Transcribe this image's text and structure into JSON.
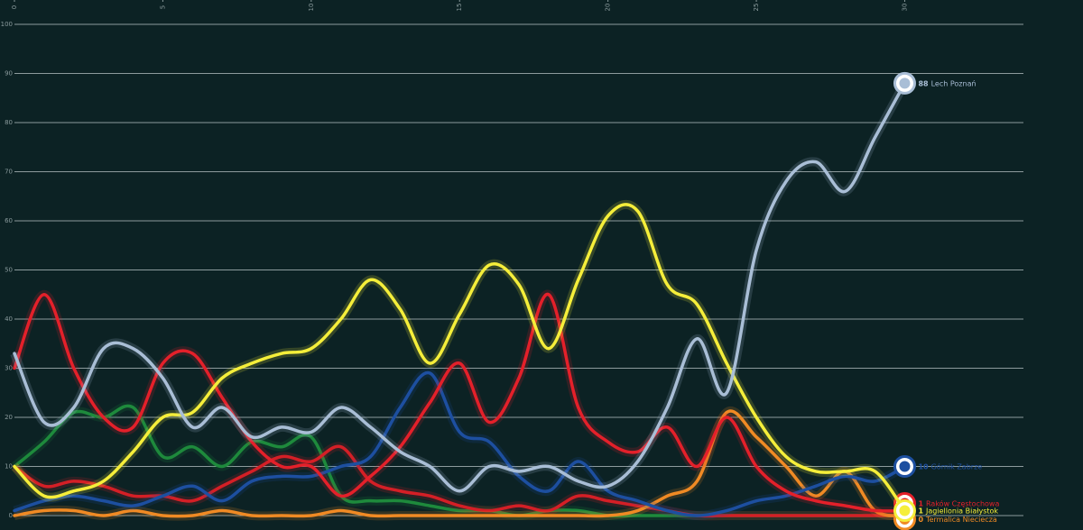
{
  "chart_data": {
    "type": "line",
    "x": [
      0,
      1,
      2,
      3,
      4,
      5,
      6,
      7,
      8,
      9,
      10,
      11,
      12,
      13,
      14,
      15,
      16,
      17,
      18,
      19,
      20,
      21,
      22,
      23,
      24,
      25,
      26,
      27,
      28,
      29,
      30
    ],
    "xlim": [
      0,
      34
    ],
    "xticks": [
      0,
      5,
      10,
      15,
      20,
      25,
      30
    ],
    "ylim": [
      0,
      100
    ],
    "yticks": [
      0,
      10,
      20,
      30,
      40,
      50,
      60,
      70,
      80,
      90,
      100
    ],
    "grid": true,
    "series": [
      {
        "color": "#1e8a3c",
        "values": [
          10,
          15,
          21,
          20,
          22,
          12,
          14,
          10,
          15,
          14,
          16,
          4,
          3,
          3,
          2,
          1,
          1,
          0,
          1,
          1,
          0,
          0,
          0,
          0,
          0,
          0,
          0,
          0,
          0,
          0,
          0
        ]
      },
      {
        "color": "#d41f26",
        "values": [
          10,
          6,
          7,
          6,
          4,
          4,
          3,
          6,
          9,
          12,
          11,
          14,
          7,
          5,
          4,
          2,
          1,
          2,
          1,
          4,
          3,
          2,
          1,
          0,
          0,
          0,
          0,
          0,
          0,
          0,
          0
        ]
      },
      {
        "name": "Termalica Nieciecza",
        "color": "#f08a24",
        "values": [
          0,
          1,
          1,
          0,
          1,
          0,
          0,
          1,
          0,
          0,
          0,
          1,
          0,
          0,
          0,
          0,
          0,
          0,
          0,
          0,
          0,
          1,
          4,
          7,
          21,
          16,
          10,
          4,
          9,
          1,
          0
        ]
      },
      {
        "name": "Górnik Zabrze",
        "color": "#1d4fa0",
        "values": [
          1,
          3,
          4,
          3,
          2,
          4,
          6,
          3,
          7,
          8,
          8,
          10,
          12,
          22,
          29,
          17,
          15,
          8,
          5,
          11,
          5,
          3,
          1,
          0,
          1,
          3,
          4,
          6,
          8,
          7,
          10
        ]
      },
      {
        "name": "Raków Częstochowa",
        "color": "#e4202a",
        "values": [
          30,
          45,
          30,
          20,
          18,
          31,
          33,
          24,
          15,
          10,
          10,
          4,
          8,
          14,
          23,
          31,
          19,
          28,
          45,
          22,
          15,
          13,
          18,
          10,
          20,
          10,
          5,
          3,
          2,
          1,
          1
        ]
      },
      {
        "name": "Jagiellonia Białystok",
        "color": "#f5ee3a",
        "values": [
          10,
          4,
          5,
          7,
          13,
          20,
          21,
          28,
          31,
          33,
          34,
          40,
          48,
          42,
          31,
          41,
          51,
          47,
          34,
          48,
          61,
          62,
          47,
          43,
          31,
          20,
          12,
          9,
          9,
          9,
          1
        ]
      },
      {
        "name": "Lech Poznań",
        "color": "#a9bed6",
        "values": [
          33,
          19,
          22,
          34,
          34,
          28,
          18,
          22,
          16,
          18,
          17,
          22,
          18,
          13,
          10,
          5,
          10,
          9,
          10,
          7,
          6,
          11,
          22,
          36,
          25,
          54,
          68,
          72,
          66,
          77,
          88
        ]
      }
    ]
  }
}
